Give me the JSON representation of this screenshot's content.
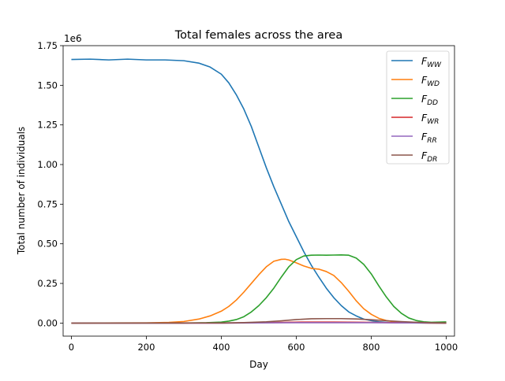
{
  "chart_data": {
    "type": "line",
    "title": "Total females across the area",
    "xlabel": "Day",
    "ylabel": "Total number of individuals",
    "y_offset_label": "1e6",
    "xlim": [
      -22,
      1022
    ],
    "ylim": [
      -0.0825,
      1.75
    ],
    "xticks": [
      0,
      200,
      400,
      600,
      800,
      1000
    ],
    "xtick_labels": [
      "0",
      "200",
      "400",
      "600",
      "800",
      "1000"
    ],
    "yticks": [
      0.0,
      0.25,
      0.5,
      0.75,
      1.0,
      1.25,
      1.5,
      1.75
    ],
    "ytick_labels": [
      "0.00",
      "0.25",
      "0.50",
      "0.75",
      "1.00",
      "1.25",
      "1.50",
      "1.75"
    ],
    "grid": false,
    "legend_position": "top-right",
    "series": [
      {
        "name": "F_WW",
        "base": "F",
        "sub": "WW",
        "color": "#1f77b4",
        "x": [
          0,
          50,
          100,
          150,
          200,
          250,
          300,
          340,
          370,
          400,
          420,
          440,
          460,
          480,
          500,
          520,
          540,
          560,
          580,
          600,
          620,
          640,
          660,
          680,
          700,
          720,
          740,
          760,
          780,
          800,
          820,
          850,
          900,
          1000
        ],
        "y": [
          1.663,
          1.665,
          1.66,
          1.665,
          1.66,
          1.66,
          1.655,
          1.64,
          1.615,
          1.57,
          1.515,
          1.44,
          1.35,
          1.24,
          1.11,
          0.98,
          0.86,
          0.75,
          0.64,
          0.545,
          0.45,
          0.365,
          0.29,
          0.22,
          0.16,
          0.11,
          0.07,
          0.045,
          0.025,
          0.015,
          0.008,
          0.003,
          0.001,
          0.0
        ]
      },
      {
        "name": "F_WD",
        "base": "F",
        "sub": "WD",
        "color": "#ff7f0e",
        "x": [
          0,
          200,
          260,
          300,
          340,
          370,
          400,
          420,
          440,
          460,
          480,
          500,
          520,
          540,
          560,
          570,
          580,
          600,
          620,
          640,
          660,
          680,
          700,
          720,
          740,
          760,
          780,
          800,
          820,
          840,
          860,
          880,
          900,
          950,
          1000
        ],
        "y": [
          0,
          0.001,
          0.004,
          0.01,
          0.025,
          0.045,
          0.075,
          0.105,
          0.145,
          0.195,
          0.25,
          0.305,
          0.355,
          0.39,
          0.402,
          0.403,
          0.398,
          0.38,
          0.36,
          0.345,
          0.34,
          0.325,
          0.3,
          0.255,
          0.2,
          0.14,
          0.09,
          0.055,
          0.03,
          0.016,
          0.008,
          0.004,
          0.002,
          0.0005,
          0.0
        ]
      },
      {
        "name": "F_DD",
        "base": "F",
        "sub": "DD",
        "color": "#2ca02c",
        "x": [
          0,
          300,
          360,
          400,
          420,
          440,
          460,
          480,
          500,
          520,
          540,
          560,
          580,
          600,
          620,
          640,
          660,
          680,
          700,
          720,
          740,
          760,
          780,
          800,
          820,
          840,
          860,
          880,
          900,
          920,
          940,
          960,
          980,
          1000
        ],
        "y": [
          0,
          0.0,
          0.002,
          0.006,
          0.012,
          0.022,
          0.04,
          0.07,
          0.11,
          0.16,
          0.22,
          0.29,
          0.355,
          0.4,
          0.423,
          0.428,
          0.429,
          0.428,
          0.429,
          0.43,
          0.428,
          0.41,
          0.37,
          0.31,
          0.235,
          0.165,
          0.105,
          0.062,
          0.032,
          0.016,
          0.008,
          0.005,
          0.006,
          0.007
        ]
      },
      {
        "name": "F_WR",
        "base": "F",
        "sub": "WR",
        "color": "#d62728",
        "x": [
          0,
          400,
          500,
          560,
          620,
          700,
          780,
          850,
          920,
          1000
        ],
        "y": [
          0,
          0.0,
          0.002,
          0.004,
          0.006,
          0.006,
          0.005,
          0.003,
          0.001,
          0.0
        ]
      },
      {
        "name": "F_RR",
        "base": "F",
        "sub": "RR",
        "color": "#9467bd",
        "x": [
          0,
          400,
          500,
          600,
          700,
          800,
          900,
          1000
        ],
        "y": [
          0,
          0.0,
          0.001,
          0.002,
          0.002,
          0.002,
          0.001,
          0.0
        ]
      },
      {
        "name": "F_DR",
        "base": "F",
        "sub": "DR",
        "color": "#8c564b",
        "x": [
          0,
          400,
          460,
          520,
          560,
          600,
          640,
          680,
          720,
          760,
          800,
          840,
          880,
          920,
          960,
          1000
        ],
        "y": [
          0,
          0.001,
          0.003,
          0.008,
          0.014,
          0.022,
          0.027,
          0.028,
          0.028,
          0.026,
          0.021,
          0.015,
          0.009,
          0.005,
          0.002,
          0.001
        ]
      }
    ]
  }
}
